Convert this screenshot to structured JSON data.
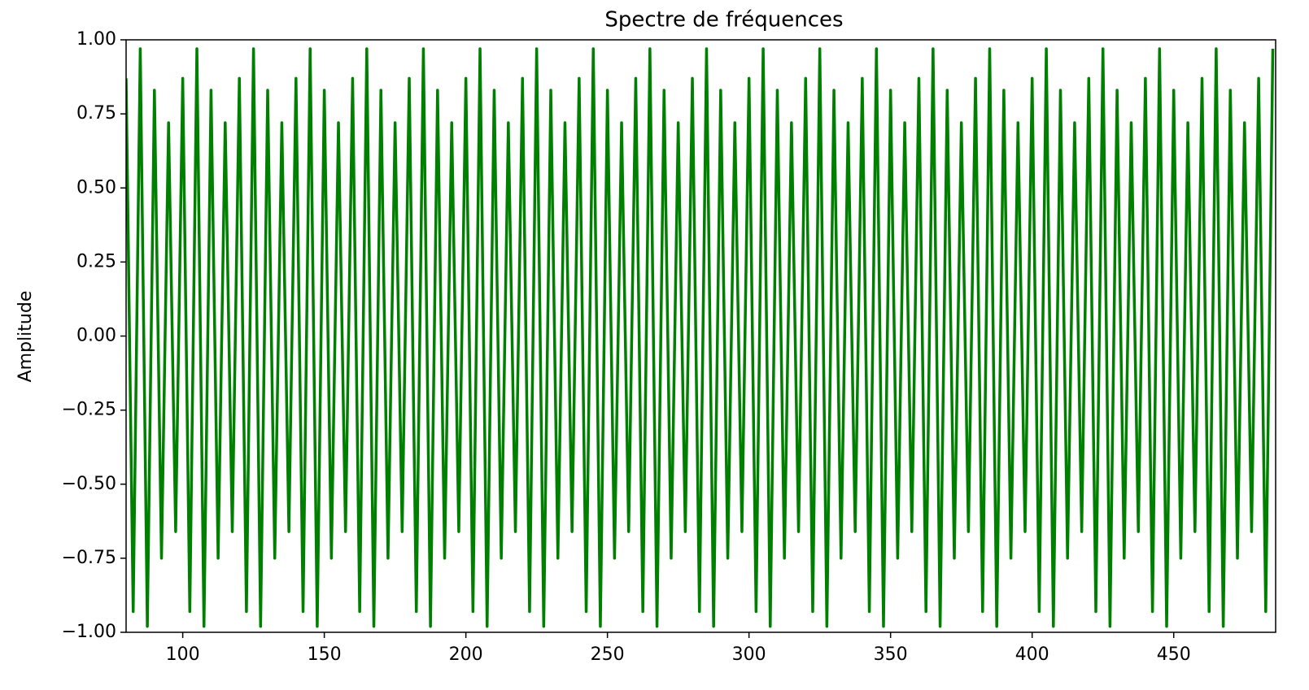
{
  "chart_data": {
    "type": "line",
    "title": "Spectre de fréquences",
    "y_label": "Amplitude",
    "color": "#008000",
    "x": [
      80,
      82.5,
      85,
      87.5,
      90,
      92.5,
      95,
      97.5,
      100,
      102.5,
      105,
      107.5,
      110,
      112.5,
      115,
      117.5,
      120,
      122.5,
      125,
      127.5,
      130,
      132.5,
      135,
      137.5,
      140,
      142.5,
      145,
      147.5,
      150,
      152.5,
      155,
      157.5,
      160,
      162.5,
      165,
      167.5,
      170,
      172.5,
      175,
      177.5,
      180,
      182.5,
      185,
      187.5,
      190,
      192.5,
      195,
      197.5,
      200,
      202.5,
      205,
      207.5,
      210,
      212.5,
      215,
      217.5,
      220,
      222.5,
      225,
      227.5,
      230,
      232.5,
      235,
      237.5,
      240,
      242.5,
      245,
      247.5,
      250,
      252.5,
      255,
      257.5,
      260,
      262.5,
      265,
      267.5,
      270,
      272.5,
      275,
      277.5,
      280,
      282.5,
      285,
      287.5,
      290,
      292.5,
      295,
      297.5,
      300,
      302.5,
      305,
      307.5,
      310,
      312.5,
      315,
      317.5,
      320,
      322.5,
      325,
      327.5,
      330,
      332.5,
      335,
      337.5,
      340,
      342.5,
      345,
      347.5,
      350,
      352.5,
      355,
      357.5,
      360,
      362.5,
      365,
      367.5,
      370,
      372.5,
      375,
      377.5,
      380,
      382.5,
      385,
      387.5,
      390,
      392.5,
      395,
      397.5,
      400,
      402.5,
      405,
      407.5,
      410,
      412.5,
      415,
      417.5,
      420,
      422.5,
      425,
      427.5,
      430,
      432.5,
      435,
      437.5,
      440,
      442.5,
      445,
      447.5,
      450,
      452.5,
      455,
      457.5,
      460,
      462.5,
      465,
      467.5,
      470,
      472.5,
      475,
      477.5,
      480,
      482.5,
      485
    ],
    "values": [
      0.87,
      -0.93,
      0.97,
      -0.98,
      0.83,
      -0.75,
      0.72,
      -0.66,
      0.87,
      -0.93,
      0.97,
      -0.98,
      0.83,
      -0.75,
      0.72,
      -0.66,
      0.87,
      -0.93,
      0.97,
      -0.98,
      0.83,
      -0.75,
      0.72,
      -0.66,
      0.87,
      -0.93,
      0.97,
      -0.98,
      0.83,
      -0.75,
      0.72,
      -0.66,
      0.87,
      -0.93,
      0.97,
      -0.98,
      0.83,
      -0.75,
      0.72,
      -0.66,
      0.87,
      -0.93,
      0.97,
      -0.98,
      0.83,
      -0.75,
      0.72,
      -0.66,
      0.87,
      -0.93,
      0.97,
      -0.98,
      0.83,
      -0.75,
      0.72,
      -0.66,
      0.87,
      -0.93,
      0.97,
      -0.98,
      0.83,
      -0.75,
      0.72,
      -0.66,
      0.87,
      -0.93,
      0.97,
      -0.98,
      0.83,
      -0.75,
      0.72,
      -0.66,
      0.87,
      -0.93,
      0.97,
      -0.98,
      0.83,
      -0.75,
      0.72,
      -0.66,
      0.87,
      -0.93,
      0.97,
      -0.98,
      0.83,
      -0.75,
      0.72,
      -0.66,
      0.87,
      -0.93,
      0.97,
      -0.98,
      0.83,
      -0.75,
      0.72,
      -0.66,
      0.87,
      -0.93,
      0.97,
      -0.98,
      0.83,
      -0.75,
      0.72,
      -0.66,
      0.87,
      -0.93,
      0.97,
      -0.98,
      0.83,
      -0.75,
      0.72,
      -0.66,
      0.87,
      -0.93,
      0.97,
      -0.98,
      0.83,
      -0.75,
      0.72,
      -0.66,
      0.87,
      -0.93,
      0.97,
      -0.98,
      0.83,
      -0.75,
      0.72,
      -0.66,
      0.87,
      -0.93,
      0.97,
      -0.98,
      0.83,
      -0.75,
      0.72,
      -0.66,
      0.87,
      -0.93,
      0.97,
      -0.98,
      0.83,
      -0.75,
      0.72,
      -0.66,
      0.87,
      -0.93,
      0.97,
      -0.98,
      0.83,
      -0.75,
      0.72,
      -0.66,
      0.87,
      -0.93,
      0.97,
      -0.98,
      0.83,
      -0.75,
      0.72,
      -0.66,
      0.87,
      -0.93,
      0.97
    ],
    "xlim": [
      80,
      486
    ],
    "xticks": [
      100,
      150,
      200,
      250,
      300,
      350,
      400,
      450
    ],
    "ylim": [
      -1,
      1
    ],
    "yticks": [
      {
        "value": -1,
        "label": "−1.00"
      },
      {
        "value": -0.75,
        "label": "−0.75"
      },
      {
        "value": -0.5,
        "label": "−0.50"
      },
      {
        "value": -0.25,
        "label": "−0.25"
      },
      {
        "value": 0,
        "label": "0.00"
      },
      {
        "value": 0.25,
        "label": "0.25"
      },
      {
        "value": 0.5,
        "label": "0.50"
      },
      {
        "value": 0.75,
        "label": "0.75"
      },
      {
        "value": 1,
        "label": "1.00"
      }
    ],
    "grid": false
  }
}
